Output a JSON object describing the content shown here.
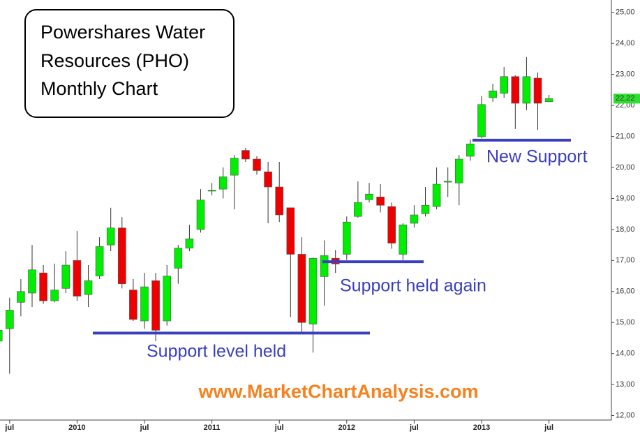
{
  "chart_data": {
    "type": "candlestick",
    "title_lines": [
      "Powershares Water",
      "Resources (PHO)",
      "Monthly Chart"
    ],
    "website": "www.MarketChartAnalysis.com",
    "categories": [
      null,
      "jul",
      null,
      null,
      null,
      null,
      null,
      "2010",
      null,
      null,
      null,
      null,
      null,
      "jul",
      null,
      null,
      null,
      null,
      null,
      "2011",
      null,
      null,
      null,
      null,
      null,
      "jul",
      null,
      null,
      null,
      null,
      null,
      "2012",
      null,
      null,
      null,
      null,
      null,
      "jul",
      null,
      null,
      null,
      null,
      null,
      "2013",
      null,
      null,
      null,
      null,
      null,
      "jul"
    ],
    "open": [
      14.4,
      14.8,
      15.65,
      15.95,
      16.6,
      15.7,
      16.1,
      17.0,
      15.9,
      16.5,
      17.5,
      18.05,
      16.05,
      15.05,
      16.35,
      15.05,
      16.75,
      17.4,
      18.0,
      19.25,
      19.3,
      19.75,
      20.55,
      20.27,
      19.86,
      19.37,
      18.7,
      17.2,
      14.95,
      16.48,
      17.07,
      17.2,
      18.42,
      18.96,
      19.05,
      18.74,
      17.2,
      18.2,
      18.51,
      18.74,
      19.53,
      19.5,
      20.36,
      20.99,
      22.25,
      22.39,
      22.93,
      22.07,
      22.88,
      22.12
    ],
    "high": [
      14.9,
      15.8,
      16.4,
      17.5,
      16.85,
      16.9,
      17.3,
      17.95,
      16.85,
      17.75,
      18.7,
      18.4,
      16.4,
      16.6,
      16.6,
      16.85,
      17.5,
      18.15,
      19.3,
      19.5,
      20.0,
      20.4,
      20.63,
      20.36,
      20.18,
      20.18,
      18.7,
      17.75,
      17.1,
      17.65,
      17.34,
      18.42,
      19.55,
      19.5,
      19.46,
      18.87,
      18.2,
      18.78,
      19.37,
      20.0,
      20.0,
      20.4,
      20.9,
      22.3,
      22.7,
      23.24,
      22.97,
      23.56,
      23.06,
      22.34
    ],
    "low": [
      14.2,
      13.35,
      15.2,
      15.5,
      15.6,
      15.65,
      15.95,
      15.7,
      15.5,
      16.4,
      17.3,
      16.1,
      15.05,
      14.8,
      14.4,
      14.9,
      16.25,
      17.3,
      17.9,
      19.1,
      19.0,
      18.65,
      20.18,
      19.77,
      18.2,
      18.24,
      15.18,
      14.68,
      14.03,
      15.54,
      16.6,
      17.02,
      18.38,
      18.87,
      18.55,
      17.38,
      17.02,
      18.06,
      18.42,
      18.65,
      19.05,
      18.78,
      20.22,
      20.94,
      22.12,
      22.25,
      21.24,
      21.85,
      21.21,
      22.12
    ],
    "close": [
      14.75,
      15.4,
      16.0,
      16.7,
      15.7,
      16.05,
      16.85,
      15.85,
      16.35,
      17.45,
      18.05,
      16.25,
      15.1,
      16.15,
      14.75,
      16.5,
      17.4,
      17.7,
      18.95,
      19.27,
      19.7,
      20.3,
      20.27,
      19.9,
      19.37,
      18.47,
      17.2,
      15.0,
      17.07,
      17.16,
      16.89,
      18.24,
      18.87,
      19.14,
      18.78,
      17.56,
      18.15,
      18.47,
      18.78,
      19.46,
      19.56,
      20.27,
      20.76,
      22.03,
      22.47,
      22.93,
      22.07,
      22.93,
      22.07,
      22.22
    ],
    "up_color": "#00ee00",
    "down_color": "#ee0000",
    "ylim": [
      11.9,
      25.4
    ],
    "yticks": [
      {
        "value": 12,
        "label": "12,00"
      },
      {
        "value": 13,
        "label": "13,00"
      },
      {
        "value": 14,
        "label": "14,00"
      },
      {
        "value": 15,
        "label": "15,00"
      },
      {
        "value": 16,
        "label": "16,00"
      },
      {
        "value": 17,
        "label": "17,00"
      },
      {
        "value": 18,
        "label": "18,00"
      },
      {
        "value": 19,
        "label": "19,00"
      },
      {
        "value": 20,
        "label": "20,00"
      },
      {
        "value": 21,
        "label": "21,00"
      },
      {
        "value": 22,
        "label": "22,00"
      },
      {
        "value": 23,
        "label": "23,00"
      },
      {
        "value": 24,
        "label": "24,00"
      },
      {
        "value": 25,
        "label": "25,00"
      }
    ],
    "last_price": {
      "value": 22.22,
      "label": "22,22"
    },
    "annotations": [
      {
        "text": "Support level held",
        "value": 14.66
      },
      {
        "text": "Support held again",
        "value": 16.96
      },
      {
        "text": "New Support",
        "value": 20.88
      }
    ],
    "annotation_color": "#3a3fbf"
  }
}
